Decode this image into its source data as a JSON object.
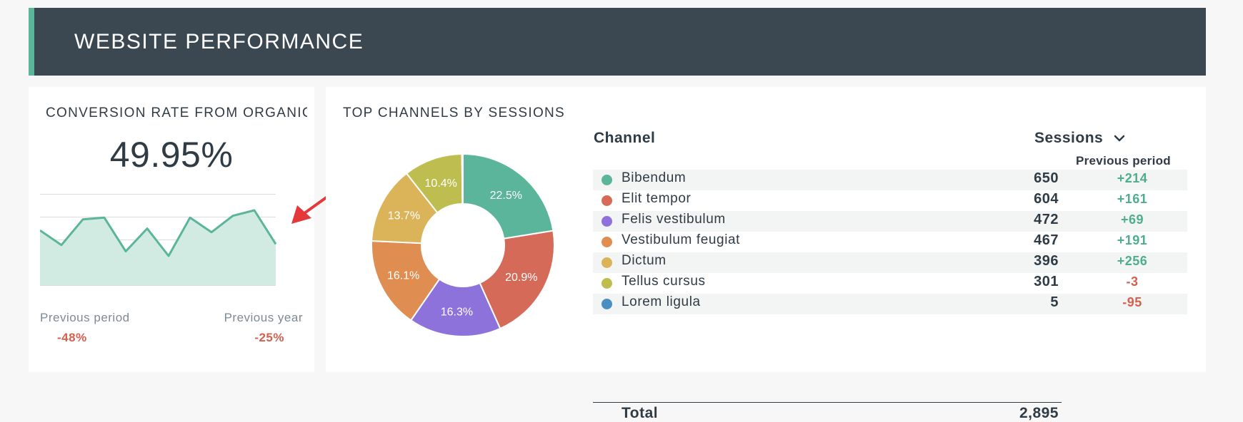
{
  "header": {
    "title": "WEBSITE PERFORMANCE"
  },
  "conversion": {
    "title": "CONVERSION RATE FROM ORGANIC",
    "value": "49.95%",
    "sparkline_values": [
      60,
      44,
      72,
      74,
      37,
      62,
      32,
      74,
      58,
      76,
      82,
      45
    ],
    "sparkline_color": "#5bb59a",
    "previous_period": {
      "label": "Previous period",
      "value": "-48%"
    },
    "previous_year": {
      "label": "Previous year",
      "value": "-25%"
    }
  },
  "annotation": {
    "type": "arrow",
    "color": "#e5383b"
  },
  "channels": {
    "title": "TOP CHANNELS BY SESSIONS",
    "column_channel": "Channel",
    "column_sessions": "Sessions",
    "sort_icon": "chevron-down-icon",
    "column_previous": "Previous period",
    "rows": [
      {
        "name": "Bibendum",
        "sessions": "650",
        "change": "+214",
        "color": "#5bb59a"
      },
      {
        "name": "Elit tempor",
        "sessions": "604",
        "change": "+161",
        "color": "#d66a59"
      },
      {
        "name": "Felis vestibulum",
        "sessions": "472",
        "change": "+69",
        "color": "#8e72db"
      },
      {
        "name": "Vestibulum feugiat",
        "sessions": "467",
        "change": "+191",
        "color": "#e08d52"
      },
      {
        "name": "Dictum",
        "sessions": "396",
        "change": "+256",
        "color": "#dbb358"
      },
      {
        "name": "Tellus cursus",
        "sessions": "301",
        "change": "-3",
        "color": "#bdbe4f"
      },
      {
        "name": "Lorem ligula",
        "sessions": "5",
        "change": "-95",
        "color": "#4a8fc2"
      }
    ],
    "total_label": "Total",
    "total_value": "2,895"
  },
  "chart_data": {
    "type": "pie",
    "title": "TOP CHANNELS BY SESSIONS",
    "categories": [
      "Bibendum",
      "Elit tempor",
      "Felis vestibulum",
      "Vestibulum feugiat",
      "Dictum",
      "Tellus cursus",
      "Lorem ligula"
    ],
    "values": [
      650,
      604,
      472,
      467,
      396,
      301,
      5
    ],
    "labels": [
      "22.5%",
      "20.9%",
      "16.3%",
      "16.1%",
      "13.7%",
      "10.4%",
      ""
    ],
    "colors": [
      "#5bb59a",
      "#d66a59",
      "#8e72db",
      "#e08d52",
      "#dbb358",
      "#bdbe4f",
      "#4a8fc2"
    ]
  }
}
